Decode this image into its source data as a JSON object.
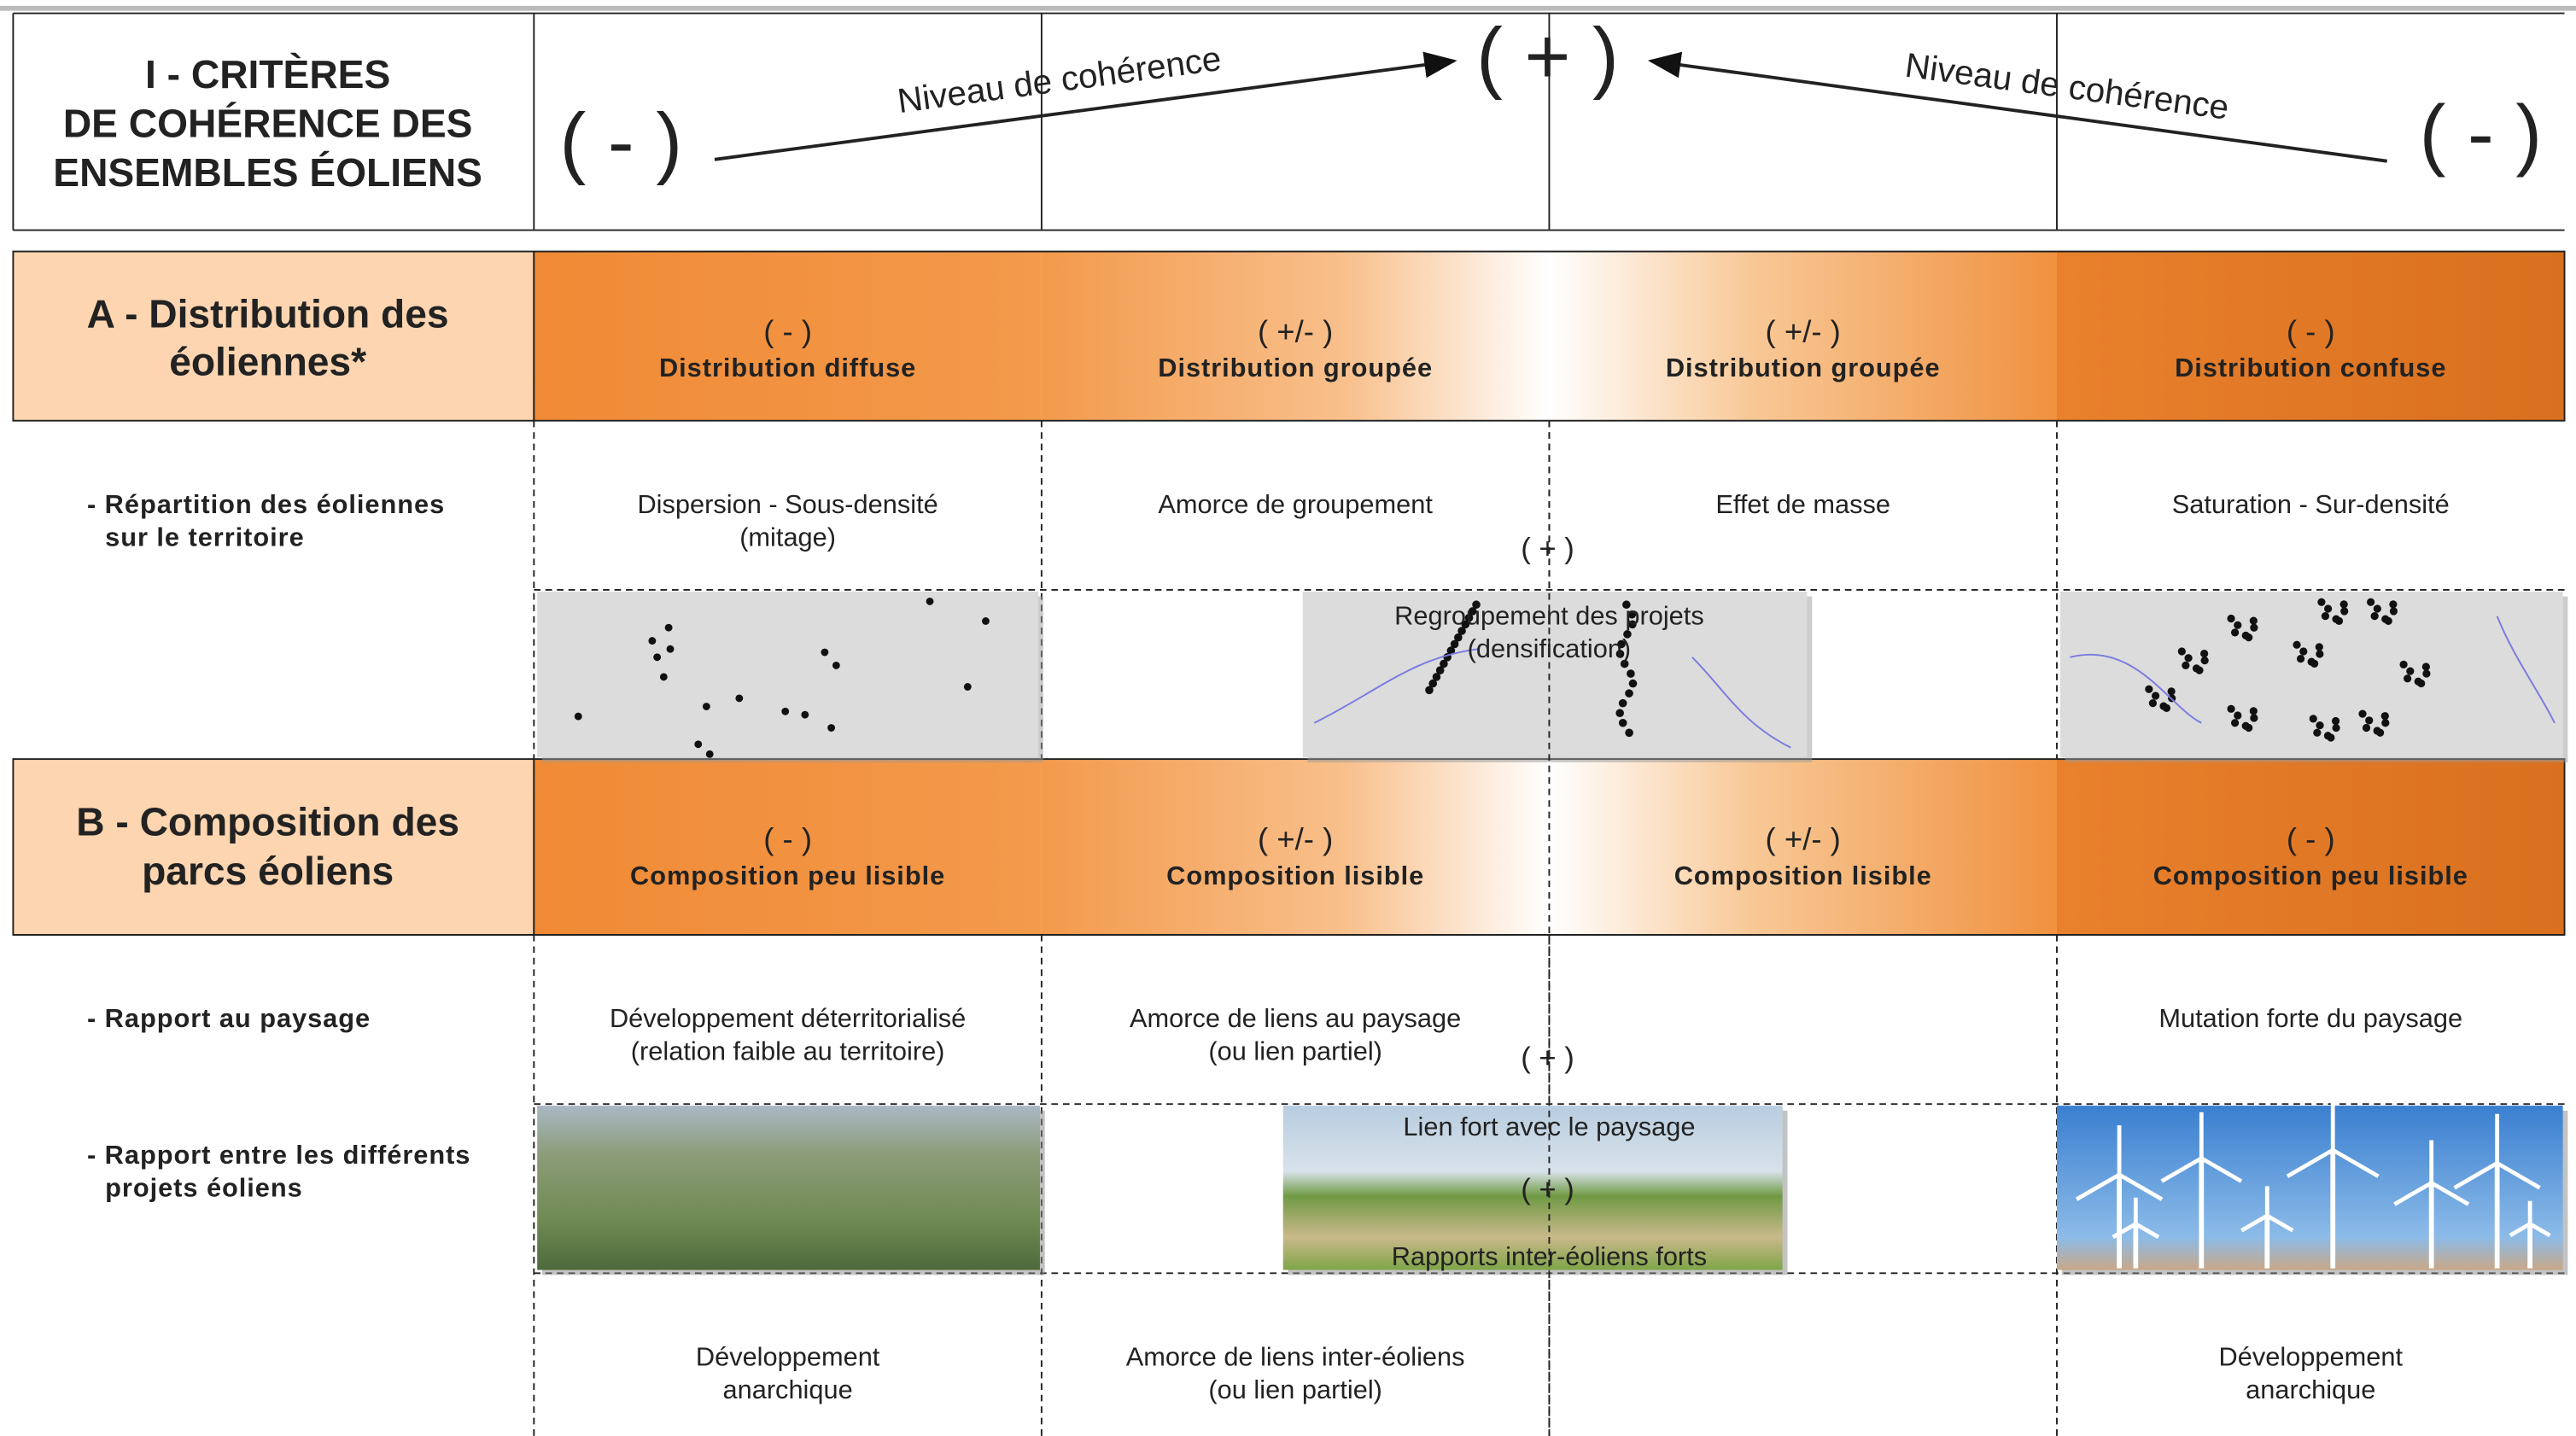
{
  "header": {
    "title": [
      "I - CRITÈRES",
      "DE COHÉRENCE DES",
      "ENSEMBLES ÉOLIENS"
    ],
    "minus_left": "( - )",
    "plus": "( + )",
    "minus_right": "( - )",
    "arrow_left_label": "Niveau de cohérence",
    "arrow_right_label": "Niveau de cohérence"
  },
  "sections": [
    {
      "title": [
        "A - Distribution des",
        "éoliennes*"
      ],
      "columns": [
        {
          "sign": "( - )",
          "label": "Distribution diffuse"
        },
        {
          "sign": "( +/- )",
          "label": "Distribution groupée"
        },
        {
          "sign": "( +/- )",
          "label": "Distribution groupée"
        },
        {
          "sign": "( - )",
          "label": "Distribution confuse"
        }
      ],
      "rows": [
        {
          "label": [
            "- Répartition des éoliennes",
            "sur le territoire"
          ],
          "cells": [
            [
              "Dispersion - Sous-densité",
              "(mitage)"
            ],
            [
              "Amorce de groupement"
            ],
            [
              "Effet de masse"
            ],
            [
              "Saturation - Sur-densité"
            ]
          ]
        }
      ],
      "center_notes": {
        "plus": "( + )",
        "image_caption": [
          "Regroupement des projets",
          "(densification)"
        ]
      }
    },
    {
      "title": [
        "B - Composition des",
        "parcs éoliens"
      ],
      "columns": [
        {
          "sign": "( - )",
          "label": "Composition peu lisible"
        },
        {
          "sign": "( +/- )",
          "label": "Composition lisible"
        },
        {
          "sign": "( +/- )",
          "label": "Composition lisible"
        },
        {
          "sign": "( - )",
          "label": "Composition peu lisible"
        }
      ],
      "rows": [
        {
          "label": [
            "- Rapport au paysage"
          ],
          "cells": [
            [
              "Développement déterritorialisé",
              "(relation faible au territoire)"
            ],
            [
              "Amorce de liens au paysage",
              "(ou lien partiel)"
            ],
            [],
            [
              "Mutation forte du paysage"
            ]
          ]
        },
        {
          "label": [
            "- Rapport entre les différents",
            "projets éoliens"
          ],
          "cells": [
            [
              "Développement",
              "anarchique"
            ],
            [
              "Amorce de liens inter-éoliens",
              "(ou lien partiel)"
            ],
            [],
            [
              "Développement",
              "anarchique"
            ]
          ]
        }
      ],
      "center_notes": {
        "plus": "( + )",
        "image_top": "Lien fort avec le paysage",
        "image_plus": "( + )",
        "image_bottom": "Rapports inter-éoliens forts"
      }
    }
  ]
}
